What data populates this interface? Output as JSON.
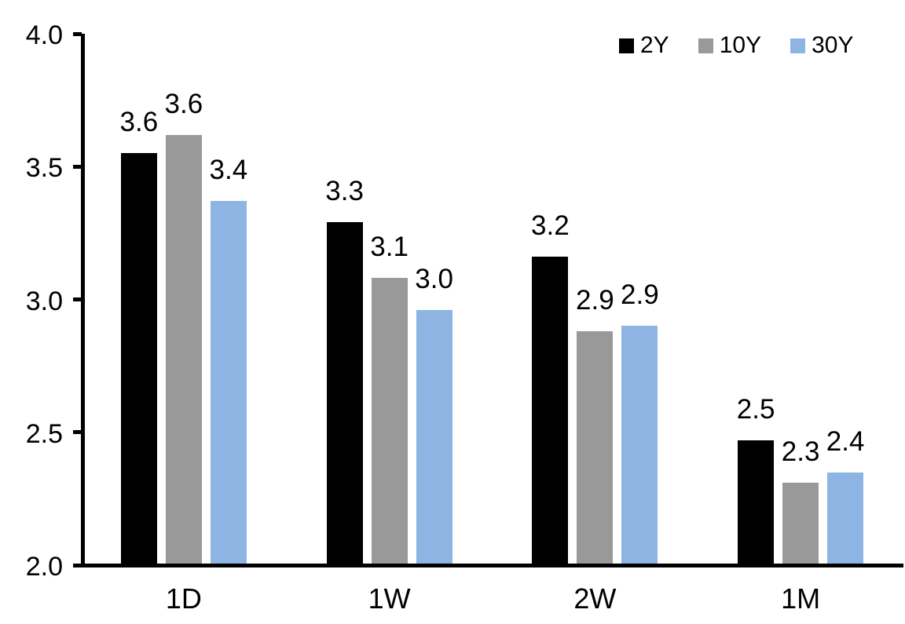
{
  "chart_data": {
    "type": "bar",
    "title": "",
    "categories": [
      "1D",
      "1W",
      "2W",
      "1M"
    ],
    "series": [
      {
        "name": "2Y",
        "color": "#000000",
        "values": [
          3.55,
          3.29,
          3.16,
          2.47
        ],
        "labels": [
          "3.6",
          "3.3",
          "3.2",
          "2.5"
        ]
      },
      {
        "name": "10Y",
        "color": "#999999",
        "values": [
          3.62,
          3.08,
          2.88,
          2.31
        ],
        "labels": [
          "3.6",
          "3.1",
          "2.9",
          "2.3"
        ]
      },
      {
        "name": "30Y",
        "color": "#8DB4E2",
        "values": [
          3.37,
          2.96,
          2.9,
          2.35
        ],
        "labels": [
          "3.4",
          "3.0",
          "2.9",
          "2.4"
        ]
      }
    ],
    "y_axis": {
      "min": 2.0,
      "max": 4.0,
      "tick_step": 0.5,
      "tick_labels": [
        "4.0",
        "3.5",
        "3.0",
        "2.5",
        "2.0"
      ]
    },
    "x_axis": {
      "tick_labels": [
        "1D",
        "1W",
        "2W",
        "1M"
      ]
    },
    "legend": {
      "position": "top-right",
      "entries": [
        "2Y",
        "10Y",
        "30Y"
      ]
    },
    "grid": false,
    "axis_color": "#000000",
    "background_color": "#FFFFFF"
  }
}
